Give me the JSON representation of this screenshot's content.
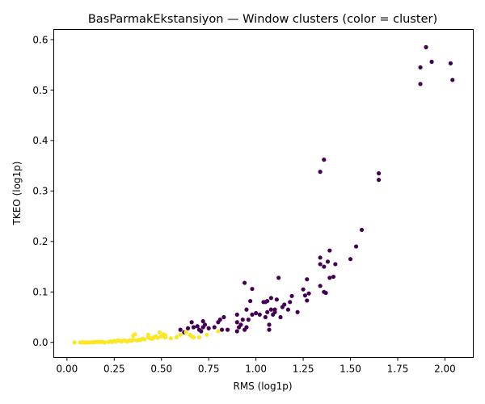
{
  "chart_data": {
    "type": "scatter",
    "title": "BasParmakEkstansiyon — Window clusters (color = cluster)",
    "xlabel": "RMS (log1p)",
    "ylabel": "TKEO (log1p)",
    "xlim": [
      -0.07,
      2.15
    ],
    "ylim": [
      -0.03,
      0.62
    ],
    "xticks": [
      "0.00",
      "0.25",
      "0.50",
      "0.75",
      "1.00",
      "1.25",
      "1.50",
      "1.75",
      "2.00"
    ],
    "yticks": [
      "0.0",
      "0.1",
      "0.2",
      "0.3",
      "0.4",
      "0.5",
      "0.6"
    ],
    "grid": false,
    "legend": "none",
    "colors": {
      "cluster_0": "#440154",
      "cluster_1": "#fde725"
    },
    "series": [
      {
        "cluster": 0,
        "points": [
          [
            0.6,
            0.025
          ],
          [
            0.62,
            0.02
          ],
          [
            0.64,
            0.028
          ],
          [
            0.66,
            0.04
          ],
          [
            0.67,
            0.03
          ],
          [
            0.69,
            0.032
          ],
          [
            0.7,
            0.025
          ],
          [
            0.71,
            0.022
          ],
          [
            0.72,
            0.042
          ],
          [
            0.72,
            0.03
          ],
          [
            0.73,
            0.035
          ],
          [
            0.75,
            0.028
          ],
          [
            0.78,
            0.03
          ],
          [
            0.8,
            0.04
          ],
          [
            0.81,
            0.045
          ],
          [
            0.82,
            0.025
          ],
          [
            0.83,
            0.05
          ],
          [
            0.85,
            0.025
          ],
          [
            0.9,
            0.055
          ],
          [
            0.9,
            0.04
          ],
          [
            0.9,
            0.022
          ],
          [
            0.91,
            0.03
          ],
          [
            0.92,
            0.035
          ],
          [
            0.93,
            0.045
          ],
          [
            0.94,
            0.025
          ],
          [
            0.94,
            0.118
          ],
          [
            0.95,
            0.03
          ],
          [
            0.95,
            0.065
          ],
          [
            0.96,
            0.045
          ],
          [
            0.97,
            0.082
          ],
          [
            0.98,
            0.106
          ],
          [
            0.98,
            0.055
          ],
          [
            1.0,
            0.058
          ],
          [
            1.02,
            0.055
          ],
          [
            1.04,
            0.08
          ],
          [
            1.05,
            0.08
          ],
          [
            1.05,
            0.05
          ],
          [
            1.06,
            0.06
          ],
          [
            1.06,
            0.082
          ],
          [
            1.07,
            0.035
          ],
          [
            1.07,
            0.025
          ],
          [
            1.08,
            0.088
          ],
          [
            1.08,
            0.065
          ],
          [
            1.09,
            0.055
          ],
          [
            1.1,
            0.06
          ],
          [
            1.1,
            0.065
          ],
          [
            1.11,
            0.085
          ],
          [
            1.12,
            0.128
          ],
          [
            1.13,
            0.05
          ],
          [
            1.14,
            0.07
          ],
          [
            1.15,
            0.075
          ],
          [
            1.17,
            0.065
          ],
          [
            1.18,
            0.08
          ],
          [
            1.19,
            0.092
          ],
          [
            1.22,
            0.06
          ],
          [
            1.25,
            0.105
          ],
          [
            1.26,
            0.093
          ],
          [
            1.27,
            0.083
          ],
          [
            1.27,
            0.125
          ],
          [
            1.28,
            0.097
          ],
          [
            1.34,
            0.112
          ],
          [
            1.34,
            0.168
          ],
          [
            1.34,
            0.155
          ],
          [
            1.34,
            0.338
          ],
          [
            1.36,
            0.15
          ],
          [
            1.36,
            0.362
          ],
          [
            1.36,
            0.1
          ],
          [
            1.37,
            0.098
          ],
          [
            1.38,
            0.16
          ],
          [
            1.39,
            0.182
          ],
          [
            1.39,
            0.128
          ],
          [
            1.41,
            0.13
          ],
          [
            1.42,
            0.155
          ],
          [
            1.5,
            0.165
          ],
          [
            1.53,
            0.19
          ],
          [
            1.56,
            0.223
          ],
          [
            1.65,
            0.335
          ],
          [
            1.65,
            0.322
          ],
          [
            1.87,
            0.545
          ],
          [
            1.87,
            0.512
          ],
          [
            1.9,
            0.585
          ],
          [
            1.93,
            0.556
          ],
          [
            2.03,
            0.553
          ],
          [
            2.04,
            0.52
          ]
        ]
      },
      {
        "cluster": 1,
        "points": [
          [
            0.04,
            0.0
          ],
          [
            0.07,
            0.0
          ],
          [
            0.08,
            0.0
          ],
          [
            0.09,
            0.0
          ],
          [
            0.1,
            0.0
          ],
          [
            0.11,
            0.0
          ],
          [
            0.12,
            0.0
          ],
          [
            0.13,
            0.0
          ],
          [
            0.14,
            0.0
          ],
          [
            0.15,
            0.001
          ],
          [
            0.16,
            0.001
          ],
          [
            0.17,
            0.001
          ],
          [
            0.18,
            0.001
          ],
          [
            0.19,
            0.001
          ],
          [
            0.2,
            0.0
          ],
          [
            0.22,
            0.001
          ],
          [
            0.23,
            0.002
          ],
          [
            0.24,
            0.001
          ],
          [
            0.25,
            0.003
          ],
          [
            0.26,
            0.002
          ],
          [
            0.27,
            0.004
          ],
          [
            0.28,
            0.003
          ],
          [
            0.29,
            0.002
          ],
          [
            0.3,
            0.004
          ],
          [
            0.31,
            0.003
          ],
          [
            0.32,
            0.002
          ],
          [
            0.33,
            0.004
          ],
          [
            0.34,
            0.003
          ],
          [
            0.35,
            0.005
          ],
          [
            0.35,
            0.013
          ],
          [
            0.36,
            0.016
          ],
          [
            0.37,
            0.004
          ],
          [
            0.38,
            0.005
          ],
          [
            0.39,
            0.005
          ],
          [
            0.4,
            0.007
          ],
          [
            0.41,
            0.006
          ],
          [
            0.43,
            0.01
          ],
          [
            0.43,
            0.015
          ],
          [
            0.44,
            0.008
          ],
          [
            0.45,
            0.007
          ],
          [
            0.46,
            0.01
          ],
          [
            0.47,
            0.012
          ],
          [
            0.48,
            0.009
          ],
          [
            0.49,
            0.02
          ],
          [
            0.5,
            0.012
          ],
          [
            0.51,
            0.016
          ],
          [
            0.52,
            0.014
          ],
          [
            0.52,
            0.01
          ],
          [
            0.55,
            0.008
          ],
          [
            0.58,
            0.01
          ],
          [
            0.6,
            0.015
          ],
          [
            0.63,
            0.02
          ],
          [
            0.65,
            0.015
          ],
          [
            0.66,
            0.012
          ],
          [
            0.67,
            0.01
          ],
          [
            0.7,
            0.01
          ],
          [
            0.74,
            0.015
          ],
          [
            0.8,
            0.022
          ]
        ]
      }
    ]
  }
}
